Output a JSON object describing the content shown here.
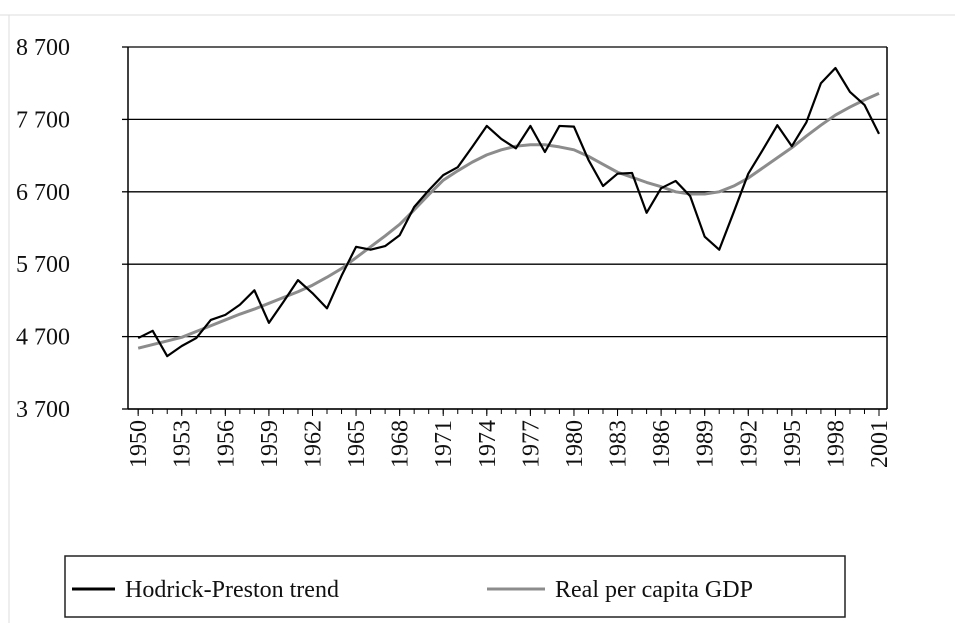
{
  "chart_data": {
    "type": "line",
    "x": [
      1950,
      1951,
      1952,
      1953,
      1954,
      1955,
      1956,
      1957,
      1958,
      1959,
      1960,
      1961,
      1962,
      1963,
      1964,
      1965,
      1966,
      1967,
      1968,
      1969,
      1970,
      1971,
      1972,
      1973,
      1974,
      1975,
      1976,
      1977,
      1978,
      1979,
      1980,
      1981,
      1982,
      1983,
      1984,
      1985,
      1986,
      1987,
      1988,
      1989,
      1990,
      1991,
      1992,
      1993,
      1994,
      1995,
      1996,
      1997,
      1998,
      1999,
      2000,
      2001
    ],
    "series": [
      {
        "name": "Hodrick-Preston trend",
        "color": "#000000",
        "values": [
          4680,
          4780,
          4430,
          4570,
          4680,
          4930,
          5000,
          5140,
          5340,
          4890,
          5180,
          5480,
          5300,
          5090,
          5540,
          5940,
          5900,
          5950,
          6100,
          6490,
          6720,
          6930,
          7040,
          7320,
          7610,
          7430,
          7300,
          7610,
          7250,
          7610,
          7600,
          7140,
          6780,
          6950,
          6960,
          6410,
          6750,
          6850,
          6640,
          6080,
          5900,
          6420,
          6950,
          7280,
          7620,
          7330,
          7660,
          8200,
          8410,
          8080,
          7900,
          7500
        ]
      },
      {
        "name": "Real per capita GDP",
        "color": "#8c8c8c",
        "values": [
          4540,
          4590,
          4640,
          4690,
          4770,
          4850,
          4930,
          5010,
          5080,
          5160,
          5240,
          5320,
          5410,
          5520,
          5640,
          5790,
          5940,
          6090,
          6250,
          6450,
          6660,
          6860,
          6990,
          7110,
          7210,
          7280,
          7330,
          7350,
          7350,
          7320,
          7280,
          7190,
          7080,
          6970,
          6900,
          6830,
          6770,
          6700,
          6670,
          6670,
          6700,
          6780,
          6890,
          7030,
          7170,
          7310,
          7470,
          7620,
          7760,
          7870,
          7970,
          8060
        ]
      }
    ],
    "xlim": [
      1949.3,
      2001.55
    ],
    "xticks": [
      1950,
      1953,
      1956,
      1959,
      1962,
      1965,
      1968,
      1971,
      1974,
      1977,
      1980,
      1983,
      1986,
      1989,
      1992,
      1995,
      1998,
      2001
    ],
    "ylim": [
      3700,
      8700
    ],
    "yticks": [
      {
        "value": 3700,
        "label": "3 700"
      },
      {
        "value": 4700,
        "label": "4 700"
      },
      {
        "value": 5700,
        "label": "5 700"
      },
      {
        "value": 6700,
        "label": "6 700"
      },
      {
        "value": 7700,
        "label": "7 700"
      },
      {
        "value": 8700,
        "label": "8 700"
      }
    ],
    "grid": true,
    "legend": "bottom"
  }
}
